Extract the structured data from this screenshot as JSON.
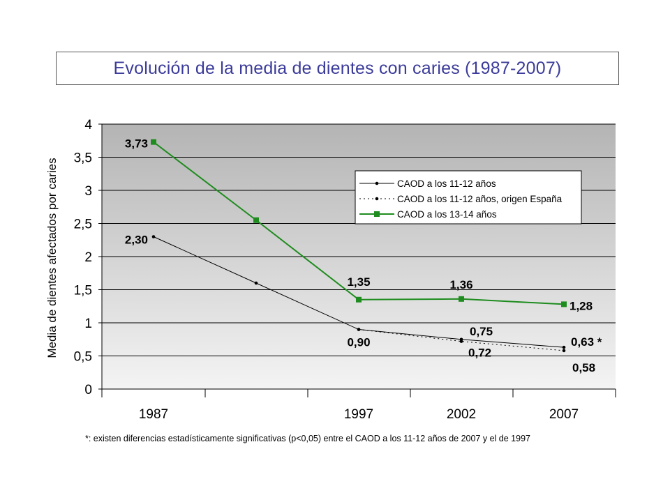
{
  "title": "Evolución de la media de dientes con caries (1987-2007)",
  "footnote": "*: existen diferencias estadísticamente significativas (p<0,05) entre el CAOD a los 11-12 años de 2007 y el de 1997",
  "chart_data": {
    "type": "line",
    "title": "Evolución de la media de dientes con caries (1987-2007)",
    "xlabel": "",
    "ylabel": "Media de dientes afectados por caries",
    "ylim": [
      0,
      4
    ],
    "yticks": [
      0,
      0.5,
      1,
      1.5,
      2,
      2.5,
      3,
      3.5,
      4
    ],
    "ytick_labels": [
      "0",
      "0,5",
      "1",
      "1,5",
      "2",
      "2,5",
      "3",
      "3,5",
      "4"
    ],
    "categories": [
      "1987",
      "",
      "1997",
      "2002",
      "2007"
    ],
    "grid": true,
    "legend_position": "top-right",
    "series": [
      {
        "name": "CAOD a los 11-12 años",
        "color": "#000000",
        "style": "solid",
        "marker": "dot",
        "values": [
          2.3,
          1.6,
          0.9,
          0.75,
          0.63
        ],
        "labels": [
          "2,30",
          "",
          "0,90",
          "0,75",
          "0,63 *"
        ]
      },
      {
        "name": "CAOD a los 11-12 años, origen España",
        "color": "#000000",
        "style": "dotted",
        "marker": "dot",
        "values": [
          null,
          null,
          0.9,
          0.72,
          0.58
        ],
        "labels": [
          "",
          "",
          "",
          "0,72",
          "0,58"
        ]
      },
      {
        "name": "CAOD a los 13-14 años",
        "color": "#1e8c1e",
        "style": "solid",
        "marker": "square",
        "values": [
          3.73,
          2.55,
          1.35,
          1.36,
          1.28
        ],
        "labels": [
          "3,73",
          "",
          "1,35",
          "1,36",
          "1,28"
        ]
      }
    ]
  }
}
